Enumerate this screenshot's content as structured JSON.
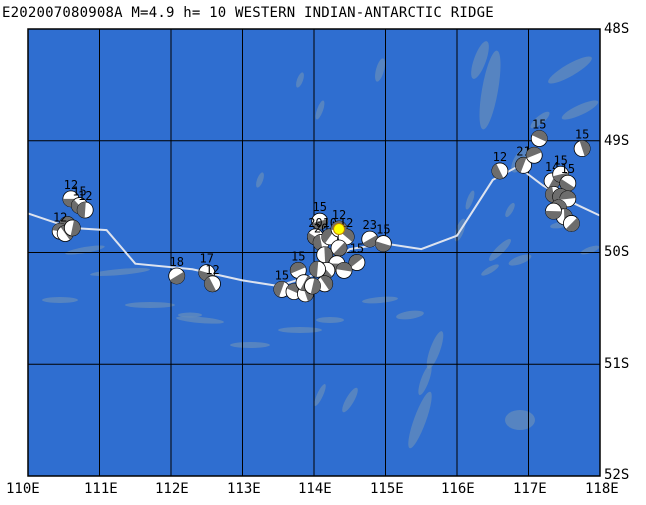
{
  "title": "E202007080908A M=4.9 h= 10 WESTERN INDIAN-ANTARCTIC RIDGE",
  "latitude_labels": [
    "48S",
    "49S",
    "50S",
    "51S",
    "52S"
  ],
  "longitude_labels": [
    "110E",
    "111E",
    "112E",
    "113E",
    "114E",
    "115E",
    "116E",
    "117E",
    "118E"
  ],
  "colors": {
    "ocean": "#2f6ed0",
    "bathymetry_deep": "#6b90b9",
    "grid": "#000000",
    "ridge": "#dde3ef",
    "beachball_dark": "#6d6d6d",
    "beachball_light": "#ffffff",
    "main_event": "#ffff00"
  },
  "main_event": {
    "lon": 114.35,
    "lat": 49.79
  },
  "ridge_path": [
    {
      "lon": 110.0,
      "lat": 49.65
    },
    {
      "lon": 110.6,
      "lat": 49.78
    },
    {
      "lon": 111.1,
      "lat": 49.8
    },
    {
      "lon": 111.5,
      "lat": 50.1
    },
    {
      "lon": 112.3,
      "lat": 50.15
    },
    {
      "lon": 113.0,
      "lat": 50.25
    },
    {
      "lon": 113.5,
      "lat": 50.3
    },
    {
      "lon": 114.0,
      "lat": 50.2
    },
    {
      "lon": 114.5,
      "lat": 49.97
    },
    {
      "lon": 115.0,
      "lat": 49.92
    },
    {
      "lon": 115.5,
      "lat": 49.97
    },
    {
      "lon": 116.0,
      "lat": 49.85
    },
    {
      "lon": 116.5,
      "lat": 49.35
    },
    {
      "lon": 116.85,
      "lat": 49.23
    },
    {
      "lon": 117.2,
      "lat": 49.4
    },
    {
      "lon": 117.6,
      "lat": 49.55
    },
    {
      "lon": 118.0,
      "lat": 49.67
    }
  ],
  "events": [
    {
      "lon": 110.6,
      "lat": 49.52,
      "depth": "12"
    },
    {
      "lon": 110.72,
      "lat": 49.58,
      "depth": "15"
    },
    {
      "lon": 110.8,
      "lat": 49.62,
      "depth": "12"
    },
    {
      "lon": 110.55,
      "lat": 49.75,
      "depth": ""
    },
    {
      "lon": 110.45,
      "lat": 49.81,
      "depth": "12"
    },
    {
      "lon": 110.52,
      "lat": 49.83,
      "depth": ""
    },
    {
      "lon": 110.62,
      "lat": 49.78,
      "depth": ""
    },
    {
      "lon": 112.08,
      "lat": 50.21,
      "depth": "18"
    },
    {
      "lon": 112.5,
      "lat": 50.18,
      "depth": "17"
    },
    {
      "lon": 112.58,
      "lat": 50.28,
      "depth": "12"
    },
    {
      "lon": 113.55,
      "lat": 50.33,
      "depth": "15"
    },
    {
      "lon": 113.78,
      "lat": 50.16,
      "depth": "15"
    },
    {
      "lon": 113.72,
      "lat": 50.35,
      "depth": ""
    },
    {
      "lon": 113.88,
      "lat": 50.37,
      "depth": ""
    },
    {
      "lon": 113.86,
      "lat": 50.27,
      "depth": ""
    },
    {
      "lon": 114.08,
      "lat": 49.72,
      "depth": "15"
    },
    {
      "lon": 114.02,
      "lat": 49.86,
      "depth": "20"
    },
    {
      "lon": 114.1,
      "lat": 49.91,
      "depth": "20"
    },
    {
      "lon": 114.22,
      "lat": 49.86,
      "depth": "10"
    },
    {
      "lon": 114.35,
      "lat": 49.79,
      "depth": "12"
    },
    {
      "lon": 114.45,
      "lat": 49.86,
      "depth": "12"
    },
    {
      "lon": 114.15,
      "lat": 50.02,
      "depth": ""
    },
    {
      "lon": 114.35,
      "lat": 49.96,
      "depth": ""
    },
    {
      "lon": 114.32,
      "lat": 50.1,
      "depth": ""
    },
    {
      "lon": 114.18,
      "lat": 50.16,
      "depth": ""
    },
    {
      "lon": 114.05,
      "lat": 50.15,
      "depth": ""
    },
    {
      "lon": 114.6,
      "lat": 50.09,
      "depth": "15"
    },
    {
      "lon": 114.42,
      "lat": 50.16,
      "depth": ""
    },
    {
      "lon": 114.15,
      "lat": 50.28,
      "depth": ""
    },
    {
      "lon": 113.98,
      "lat": 50.3,
      "depth": ""
    },
    {
      "lon": 114.78,
      "lat": 49.88,
      "depth": "23"
    },
    {
      "lon": 114.97,
      "lat": 49.92,
      "depth": "15"
    },
    {
      "lon": 116.6,
      "lat": 49.27,
      "depth": "12"
    },
    {
      "lon": 116.93,
      "lat": 49.22,
      "depth": "21"
    },
    {
      "lon": 117.08,
      "lat": 49.13,
      "depth": ""
    },
    {
      "lon": 117.15,
      "lat": 48.98,
      "depth": "15"
    },
    {
      "lon": 117.75,
      "lat": 49.07,
      "depth": "15"
    },
    {
      "lon": 117.33,
      "lat": 49.36,
      "depth": "14"
    },
    {
      "lon": 117.45,
      "lat": 49.3,
      "depth": "15"
    },
    {
      "lon": 117.55,
      "lat": 49.38,
      "depth": "15"
    },
    {
      "lon": 117.35,
      "lat": 49.48,
      "depth": ""
    },
    {
      "lon": 117.45,
      "lat": 49.5,
      "depth": ""
    },
    {
      "lon": 117.55,
      "lat": 49.52,
      "depth": ""
    },
    {
      "lon": 117.42,
      "lat": 49.6,
      "depth": ""
    },
    {
      "lon": 117.5,
      "lat": 49.68,
      "depth": ""
    },
    {
      "lon": 117.6,
      "lat": 49.74,
      "depth": ""
    },
    {
      "lon": 117.35,
      "lat": 49.63,
      "depth": ""
    }
  ]
}
